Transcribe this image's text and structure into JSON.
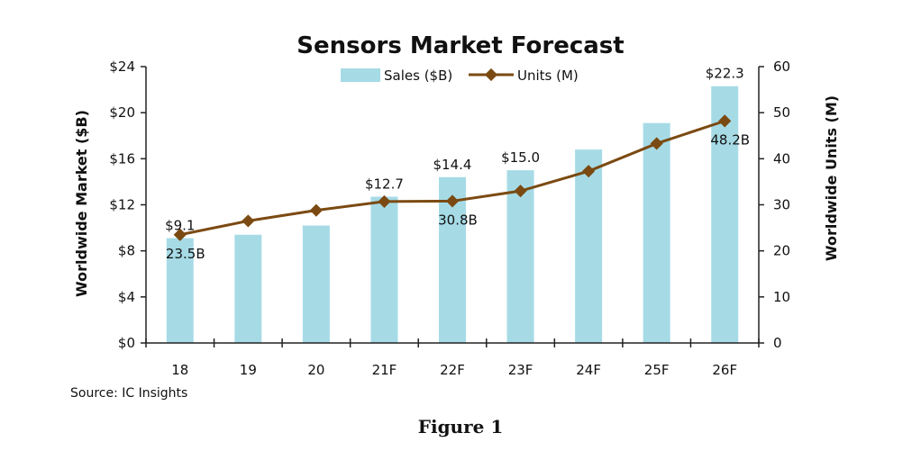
{
  "figure_caption": "Figure 1",
  "chart_data": {
    "type": "bar",
    "title": "Sensors Market Forecast",
    "categories": [
      "18",
      "19",
      "20",
      "21F",
      "22F",
      "23F",
      "24F",
      "25F",
      "26F"
    ],
    "series": [
      {
        "name": "Sales ($B)",
        "type": "bar",
        "axis": "left",
        "color": "#a6dbe6",
        "values": [
          9.1,
          9.4,
          10.2,
          12.7,
          14.4,
          15.0,
          16.8,
          19.1,
          22.3
        ]
      },
      {
        "name": "Units (M)",
        "type": "line",
        "axis": "right",
        "color": "#7b4a12",
        "marker_color": "#7b4a12",
        "values": [
          23.5,
          26.5,
          28.8,
          30.7,
          30.8,
          33.0,
          37.3,
          43.3,
          48.2
        ]
      }
    ],
    "ylabel": "Worldwide Market ($B)",
    "ylim": [
      0,
      24
    ],
    "yticks": [
      0,
      4,
      8,
      12,
      16,
      20,
      24
    ],
    "ytick_labels": [
      "$0",
      "$4",
      "$8",
      "$12",
      "$16",
      "$20",
      "$24"
    ],
    "y2label": "Worldwide Units (M)",
    "y2lim": [
      0,
      60
    ],
    "y2ticks": [
      0,
      10,
      20,
      30,
      40,
      50,
      60
    ],
    "y2tick_labels": [
      "0",
      "10",
      "20",
      "30",
      "40",
      "50",
      "60"
    ],
    "bar_labels": [
      {
        "index": 0,
        "text": "$9.1"
      },
      {
        "index": 3,
        "text": "$12.7"
      },
      {
        "index": 4,
        "text": "$14.4"
      },
      {
        "index": 5,
        "text": "$15.0"
      },
      {
        "index": 8,
        "text": "$22.3"
      }
    ],
    "line_labels": [
      {
        "index": 0,
        "text": "23.5B"
      },
      {
        "index": 4,
        "text": "30.8B"
      },
      {
        "index": 8,
        "text": "48.2B"
      }
    ],
    "legend": {
      "position": "top-center"
    },
    "grid": false,
    "source": "Source: IC Insights"
  }
}
